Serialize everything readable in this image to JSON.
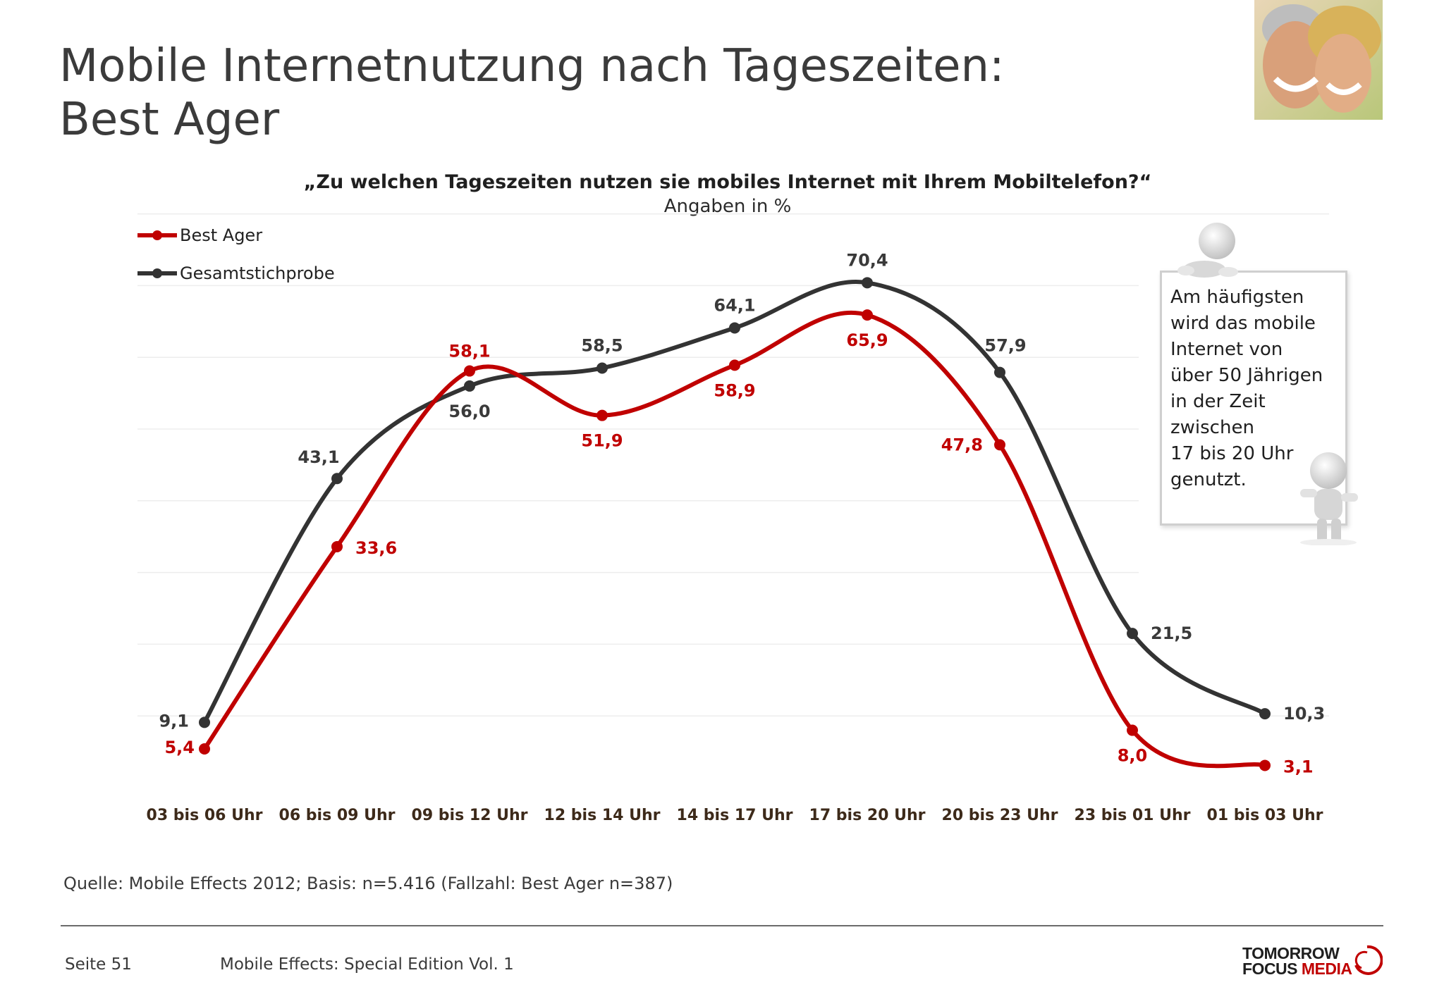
{
  "page": {
    "title_line1": "Mobile Internetnutzung nach Tageszeiten:",
    "title_line2": "Best Ager",
    "source": "Quelle: Mobile Effects 2012; Basis: n=5.416 (Fallzahl: Best Ager n=387)",
    "page_number": "Seite 51",
    "edition": "Mobile Effects: Special Edition Vol. 1",
    "logo_line1": "TOMORROW",
    "logo_line2a": "FOCUS",
    "logo_line2b": "MEDIA"
  },
  "note": {
    "text": "Am häufigsten\nwird das mobile\nInternet von\nüber 50 Jährigen\nin der Zeit\nzwischen\n17 bis 20 Uhr\ngenutzt."
  },
  "chart_data": {
    "type": "line",
    "title": "„Zu welchen Tageszeiten nutzen sie mobiles Internet mit Ihrem Mobiltelefon?“",
    "subtitle": "Angaben in %",
    "categories": [
      "03 bis 06 Uhr",
      "06 bis 09 Uhr",
      "09 bis 12 Uhr",
      "12 bis 14 Uhr",
      "14 bis 17 Uhr",
      "17 bis 20 Uhr",
      "20 bis 23 Uhr",
      "23 bis 01 Uhr",
      "01 bis 03 Uhr"
    ],
    "series": [
      {
        "name": "Best Ager",
        "color": "#c00000",
        "values": [
          5.4,
          33.6,
          58.1,
          51.9,
          58.9,
          65.9,
          47.8,
          8.0,
          3.1
        ],
        "labels": [
          "5,4",
          "33,6",
          "58,1",
          "51,9",
          "58,9",
          "65,9",
          "47,8",
          "8,0",
          "3,1"
        ]
      },
      {
        "name": "Gesamtstichprobe",
        "color": "#333333",
        "values": [
          9.1,
          43.1,
          56.0,
          58.5,
          64.1,
          70.4,
          57.9,
          21.5,
          10.3
        ],
        "labels": [
          "9,1",
          "43,1",
          "56,0",
          "58,5",
          "64,1",
          "70,4",
          "57,9",
          "21,5",
          "10,3"
        ]
      }
    ],
    "ylim": [
      0,
      100
    ],
    "grid": true,
    "legend_position": "top-left"
  }
}
